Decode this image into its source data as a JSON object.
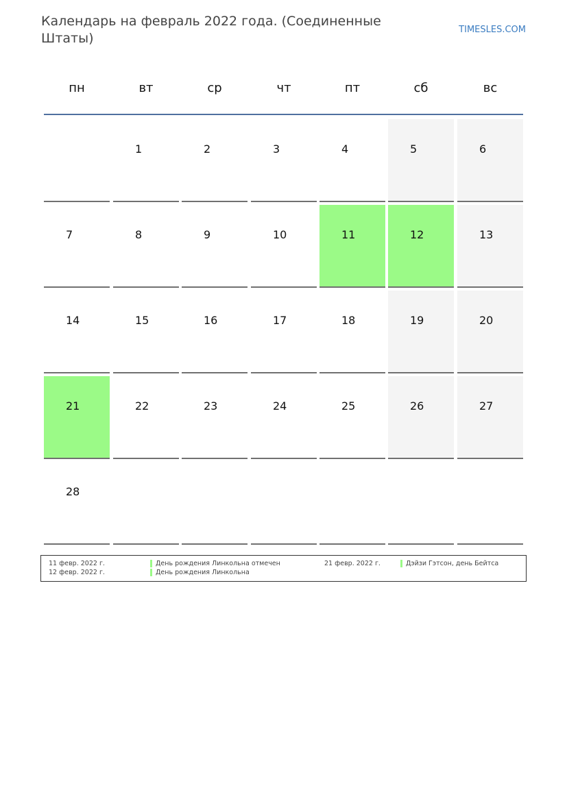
{
  "header": {
    "title": "Календарь на февраль 2022 года. (Соединенные Штаты)",
    "site": "TIMESLES.COM"
  },
  "weekdays": [
    "пн",
    "вт",
    "ср",
    "чт",
    "пт",
    "сб",
    "вс"
  ],
  "colors": {
    "holiday": "#9bfa87",
    "weekend": "#f4f4f4",
    "header_rule": "#4f6f9f",
    "site_link": "#3a7cc1"
  },
  "weeks": [
    [
      "",
      "1",
      "2",
      "3",
      "4",
      "5",
      "6"
    ],
    [
      "7",
      "8",
      "9",
      "10",
      "11",
      "12",
      "13"
    ],
    [
      "14",
      "15",
      "16",
      "17",
      "18",
      "19",
      "20"
    ],
    [
      "21",
      "22",
      "23",
      "24",
      "25",
      "26",
      "27"
    ],
    [
      "28",
      "",
      "",
      "",
      "",
      "",
      ""
    ]
  ],
  "highlighted_days": [
    "11",
    "12",
    "21"
  ],
  "legend": [
    {
      "date": "11 февр. 2022 г.",
      "name": "День рождения Линкольна отмечен"
    },
    {
      "date": "12 февр. 2022 г.",
      "name": "День рождения Линкольна"
    },
    {
      "date": "21 февр. 2022 г.",
      "name": "Дэйзи Гэтсон, день Бейтса"
    }
  ]
}
